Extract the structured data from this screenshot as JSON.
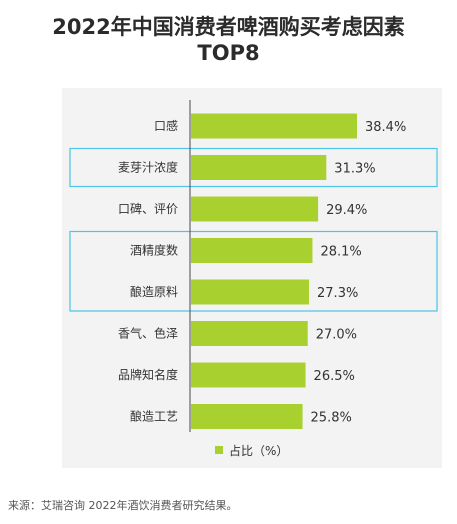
{
  "title_line1": "2022年中国消费者啤酒购买考虑因素",
  "title_line2": "TOP8",
  "source": "来源：艾瑞咨询 2022年酒饮消费者研究结果。",
  "colors": {
    "bar": "#a8d12f",
    "highlight": "#4fc4e6",
    "panel": "#f3f3f3",
    "axis": "#4a4a4a"
  },
  "chart_data": {
    "type": "bar",
    "orientation": "horizontal",
    "title": "2022年中国消费者啤酒购买考虑因素TOP8",
    "categories": [
      "口感",
      "麦芽汁浓度",
      "口碑、评价",
      "酒精度数",
      "酿造原料",
      "香气、色泽",
      "品牌知名度",
      "酿造工艺"
    ],
    "series": [
      {
        "name": "占比（%）",
        "values": [
          38.4,
          31.3,
          29.4,
          28.1,
          27.3,
          27.0,
          26.5,
          25.8
        ]
      }
    ],
    "labels": [
      "38.4%",
      "31.3%",
      "29.4%",
      "28.1%",
      "27.3%",
      "27.0%",
      "26.5%",
      "25.8%"
    ],
    "xlim": [
      0,
      38.4
    ],
    "legend": "bottom",
    "grid": false,
    "highlight_groups": [
      [
        1
      ],
      [
        3,
        4
      ]
    ]
  }
}
